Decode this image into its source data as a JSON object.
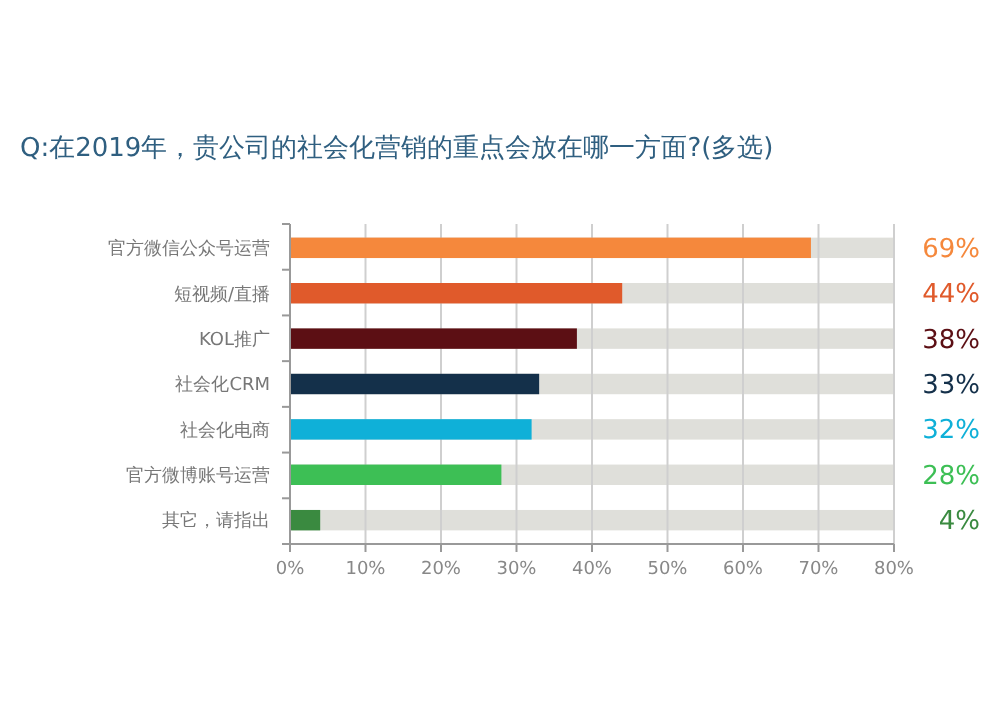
{
  "chart_data": {
    "type": "bar",
    "orientation": "horizontal",
    "title": "Q:在2019年，贵公司的社会化营销的重点会放在哪一方面?(多选)",
    "categories": [
      "官方微信公众号运营",
      "短视频/直播",
      "KOL推广",
      "社会化CRM",
      "社会化电商",
      "官方微博账号运营",
      "其它，请指出"
    ],
    "values": [
      69,
      44,
      38,
      33,
      32,
      28,
      4
    ],
    "colors": [
      "#f5883c",
      "#e05a2b",
      "#5c0f14",
      "#14304a",
      "#0fb0d8",
      "#3dbf55",
      "#3a8a40"
    ],
    "value_labels": [
      "69%",
      "44%",
      "38%",
      "33%",
      "32%",
      "28%",
      "4%"
    ],
    "xlim": [
      0,
      80
    ],
    "xticks": [
      {
        "value": 0,
        "label": "0%"
      },
      {
        "value": 10,
        "label": "10%"
      },
      {
        "value": 20,
        "label": "20%"
      },
      {
        "value": 30,
        "label": "30%"
      },
      {
        "value": 40,
        "label": "40%"
      },
      {
        "value": 50,
        "label": "50%"
      },
      {
        "value": 60,
        "label": "60%"
      },
      {
        "value": 70,
        "label": "70%"
      },
      {
        "value": 80,
        "label": "80%"
      }
    ],
    "grid": "x"
  }
}
